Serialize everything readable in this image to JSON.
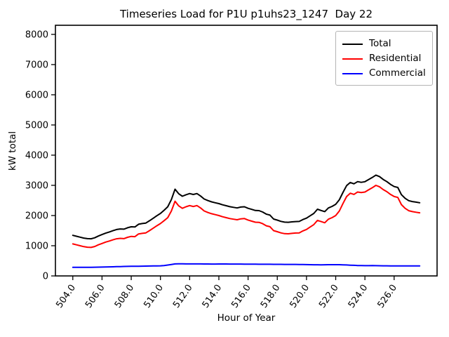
{
  "chart_data": {
    "type": "line",
    "title": "Timeseries Load for P1U p1uhs23_1247  Day 22",
    "xlabel": "Hour of Year",
    "ylabel": "kW total",
    "grid": false,
    "legend_position": "upper right",
    "xlim": [
      502.81,
      528.94
    ],
    "ylim": [
      0,
      8302
    ],
    "y_ticks": [
      "8000",
      "7000",
      "6000",
      "5000",
      "4000",
      "3000",
      "2000",
      "1000",
      "0"
    ],
    "y_tick_values": [
      8000,
      7000,
      6000,
      5000,
      4000,
      3000,
      2000,
      1000,
      0
    ],
    "x_ticks": [
      "504.0",
      "506.0",
      "508.0",
      "510.0",
      "512.0",
      "514.0",
      "516.0",
      "518.0",
      "520.0",
      "522.0",
      "524.0",
      "526.0"
    ],
    "x_tick_values": [
      504,
      506,
      508,
      510,
      512,
      514,
      516,
      518,
      520,
      522,
      524,
      526
    ],
    "x_tick_rotation": -55,
    "x": [
      504.0,
      504.25,
      504.5,
      504.75,
      505.0,
      505.25,
      505.5,
      505.75,
      506.0,
      506.25,
      506.5,
      506.75,
      507.0,
      507.25,
      507.5,
      507.75,
      508.0,
      508.25,
      508.5,
      508.75,
      509.0,
      509.25,
      509.5,
      509.75,
      510.0,
      510.25,
      510.5,
      510.75,
      511.0,
      511.25,
      511.5,
      511.75,
      512.0,
      512.25,
      512.5,
      512.75,
      513.0,
      513.25,
      513.5,
      513.75,
      514.0,
      514.25,
      514.5,
      514.75,
      515.0,
      515.25,
      515.5,
      515.75,
      516.0,
      516.25,
      516.5,
      516.75,
      517.0,
      517.25,
      517.5,
      517.75,
      518.0,
      518.25,
      518.5,
      518.75,
      519.0,
      519.25,
      519.5,
      519.75,
      520.0,
      520.25,
      520.5,
      520.75,
      521.0,
      521.25,
      521.5,
      521.75,
      522.0,
      522.25,
      522.5,
      522.75,
      523.0,
      523.25,
      523.5,
      523.75,
      524.0,
      524.25,
      524.5,
      524.75,
      525.0,
      525.25,
      525.5,
      525.75,
      526.0,
      526.25,
      526.5,
      526.75,
      527.0,
      527.25,
      527.5,
      527.75
    ],
    "series": [
      {
        "name": "Total",
        "color": "#000000",
        "values": [
          1345,
          1314,
          1283,
          1253,
          1234,
          1231,
          1263,
          1321,
          1369,
          1417,
          1455,
          1498,
          1536,
          1555,
          1548,
          1596,
          1628,
          1620,
          1712,
          1734,
          1751,
          1828,
          1910,
          1992,
          2070,
          2175,
          2290,
          2530,
          2873,
          2722,
          2640,
          2688,
          2727,
          2698,
          2728,
          2647,
          2546,
          2495,
          2454,
          2424,
          2395,
          2356,
          2325,
          2294,
          2273,
          2252,
          2282,
          2291,
          2240,
          2204,
          2168,
          2162,
          2116,
          2046,
          2015,
          1884,
          1848,
          1808,
          1782,
          1777,
          1791,
          1801,
          1805,
          1868,
          1915,
          1992,
          2070,
          2209,
          2168,
          2129,
          2251,
          2302,
          2373,
          2522,
          2768,
          2992,
          3096,
          3050,
          3124,
          3101,
          3120,
          3190,
          3261,
          3340,
          3288,
          3196,
          3124,
          3032,
          2961,
          2930,
          2690,
          2571,
          2492,
          2463,
          2443,
          2423
        ]
      },
      {
        "name": "Residential",
        "color": "#ff0000",
        "values": [
          1060,
          1030,
          1000,
          970,
          950,
          945,
          975,
          1030,
          1075,
          1120,
          1155,
          1195,
          1230,
          1245,
          1235,
          1280,
          1310,
          1300,
          1390,
          1410,
          1425,
          1500,
          1580,
          1660,
          1735,
          1830,
          1930,
          2150,
          2475,
          2320,
          2240,
          2290,
          2330,
          2300,
          2330,
          2250,
          2150,
          2100,
          2060,
          2030,
          2000,
          1960,
          1930,
          1900,
          1880,
          1860,
          1890,
          1900,
          1850,
          1815,
          1780,
          1775,
          1730,
          1660,
          1630,
          1500,
          1465,
          1425,
          1400,
          1395,
          1410,
          1420,
          1425,
          1490,
          1540,
          1620,
          1700,
          1840,
          1800,
          1760,
          1880,
          1930,
          2000,
          2150,
          2400,
          2630,
          2740,
          2700,
          2780,
          2760,
          2780,
          2850,
          2920,
          3000,
          2950,
          2860,
          2790,
          2700,
          2630,
          2600,
          2360,
          2240,
          2160,
          2130,
          2110,
          2090
        ]
      },
      {
        "name": "Commercial",
        "color": "#0000ff",
        "values": [
          285,
          284,
          283,
          283,
          284,
          286,
          288,
          291,
          294,
          297,
          300,
          303,
          306,
          310,
          313,
          316,
          318,
          320,
          322,
          324,
          326,
          328,
          330,
          332,
          335,
          345,
          360,
          380,
          398,
          402,
          400,
          398,
          397,
          398,
          398,
          397,
          396,
          395,
          394,
          394,
          395,
          396,
          395,
          394,
          393,
          392,
          392,
          391,
          390,
          389,
          388,
          387,
          386,
          386,
          385,
          384,
          383,
          383,
          382,
          382,
          381,
          381,
          380,
          378,
          375,
          372,
          370,
          369,
          368,
          369,
          371,
          372,
          373,
          372,
          368,
          362,
          356,
          350,
          344,
          341,
          340,
          340,
          341,
          340,
          338,
          336,
          334,
          332,
          331,
          330,
          330,
          331,
          332,
          333,
          333,
          333
        ]
      }
    ]
  }
}
